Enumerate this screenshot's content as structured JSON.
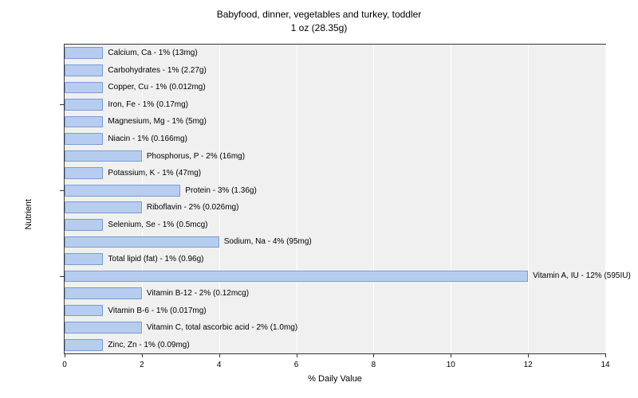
{
  "chart": {
    "type": "horizontal-bar",
    "title_line1": "Babyfood, dinner, vegetables and turkey, toddler",
    "title_line2": "1 oz (28.35g)",
    "title_fontsize": 12,
    "x_axis_label": "% Daily Value",
    "y_axis_label": "Nutrient",
    "xlim": [
      0,
      14
    ],
    "x_ticks": [
      0,
      2,
      4,
      6,
      8,
      10,
      12,
      14
    ],
    "y_major_tick_indices": [
      3,
      8,
      13
    ],
    "plot_bg": "#f0f0f0",
    "grid_color": "#ffffff",
    "bar_fill": "#b6cdef",
    "bar_border": "#7a9cd4",
    "label_fontsize": 10,
    "axis_fontsize": 11,
    "bars": [
      {
        "label": "Calcium, Ca - 1% (13mg)",
        "value": 1
      },
      {
        "label": "Carbohydrates - 1% (2.27g)",
        "value": 1
      },
      {
        "label": "Copper, Cu - 1% (0.012mg)",
        "value": 1
      },
      {
        "label": "Iron, Fe - 1% (0.17mg)",
        "value": 1
      },
      {
        "label": "Magnesium, Mg - 1% (5mg)",
        "value": 1
      },
      {
        "label": "Niacin - 1% (0.166mg)",
        "value": 1
      },
      {
        "label": "Phosphorus, P - 2% (16mg)",
        "value": 2
      },
      {
        "label": "Potassium, K - 1% (47mg)",
        "value": 1
      },
      {
        "label": "Protein - 3% (1.36g)",
        "value": 3
      },
      {
        "label": "Riboflavin - 2% (0.026mg)",
        "value": 2
      },
      {
        "label": "Selenium, Se - 1% (0.5mcg)",
        "value": 1
      },
      {
        "label": "Sodium, Na - 4% (95mg)",
        "value": 4
      },
      {
        "label": "Total lipid (fat) - 1% (0.96g)",
        "value": 1
      },
      {
        "label": "Vitamin A, IU - 12% (595IU)",
        "value": 12
      },
      {
        "label": "Vitamin B-12 - 2% (0.12mcg)",
        "value": 2
      },
      {
        "label": "Vitamin B-6 - 1% (0.017mg)",
        "value": 1
      },
      {
        "label": "Vitamin C, total ascorbic acid - 2% (1.0mg)",
        "value": 2
      },
      {
        "label": "Zinc, Zn - 1% (0.09mg)",
        "value": 1
      }
    ]
  }
}
